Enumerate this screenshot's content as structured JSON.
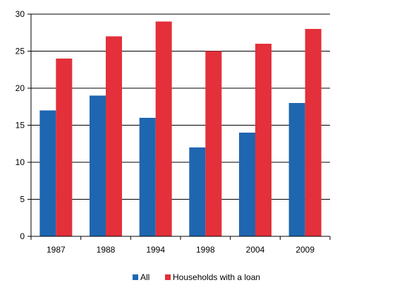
{
  "chart_data": {
    "type": "bar",
    "categories": [
      "1987",
      "1988",
      "1994",
      "1998",
      "2004",
      "2009"
    ],
    "series": [
      {
        "name": "All",
        "values": [
          17,
          19,
          16,
          12,
          14,
          18
        ],
        "color": "#1f66b0"
      },
      {
        "name": "Households with a loan",
        "values": [
          24,
          27,
          29,
          25,
          26,
          28
        ],
        "color": "#e3303a"
      }
    ],
    "ylim": [
      0,
      30
    ],
    "yticks": [
      "0",
      "5",
      "10",
      "15",
      "20",
      "25",
      "30"
    ],
    "grid": true,
    "legend_position": "bottom"
  }
}
